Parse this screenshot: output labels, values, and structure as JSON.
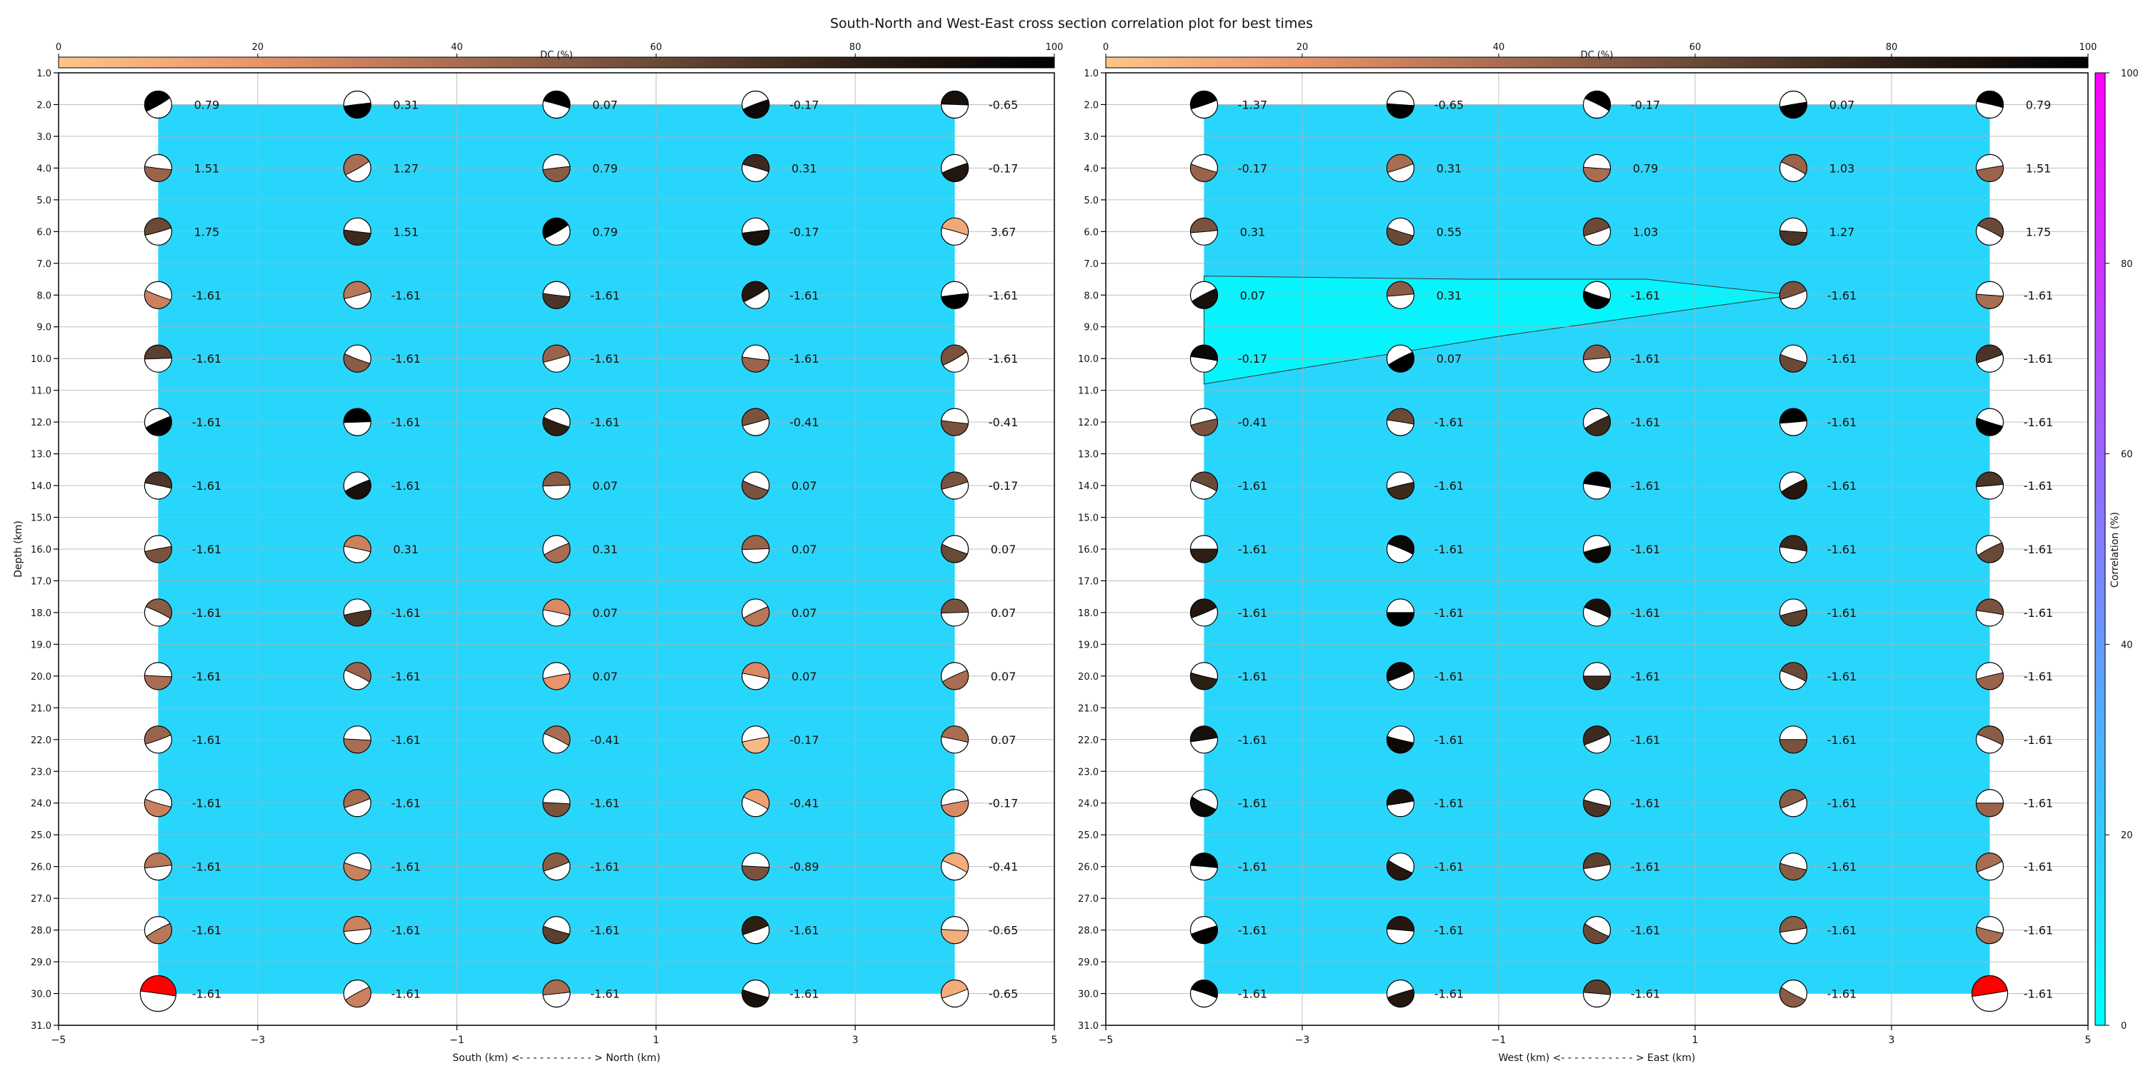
{
  "title": "South-North and West-East cross section correlation plot for best times",
  "colors": {
    "background_fill": "#29d6fb",
    "low_corr_fill": "#08f4fc",
    "beach_white": "#ffffff",
    "highlight": "#ff0000",
    "dc_colormap": [
      "#fdc58a",
      "#e9946a",
      "#a86d52",
      "#6a4a37",
      "#2e1f15",
      "#000000"
    ],
    "corr_colormap": [
      "#00ffff",
      "#ff00ff"
    ]
  },
  "dc_colorbar": {
    "label": "DC (%)",
    "ticks": [
      "0",
      "20",
      "40",
      "60",
      "80",
      "100"
    ]
  },
  "corr_colorbar": {
    "label": "Correlation (%)",
    "ticks": [
      "0",
      "20",
      "40",
      "60",
      "80",
      "100"
    ]
  },
  "chart_data": [
    {
      "type": "scatter",
      "name_label": "",
      "xlabel": "South (km) <- - - - - - - - - - - > North (km)",
      "ylabel": "Depth (km)",
      "xlim": [
        -5,
        5
      ],
      "ylim": [
        31,
        1
      ],
      "xticks": [
        "−5",
        "−3",
        "−1",
        "1",
        "3",
        "5"
      ],
      "yticks": [
        "1.0",
        "2.0",
        "3.0",
        "4.0",
        "5.0",
        "6.0",
        "7.0",
        "8.0",
        "9.0",
        "10.0",
        "11.0",
        "12.0",
        "13.0",
        "14.0",
        "15.0",
        "16.0",
        "17.0",
        "18.0",
        "19.0",
        "20.0",
        "21.0",
        "22.0",
        "23.0",
        "24.0",
        "25.0",
        "26.0",
        "27.0",
        "28.0",
        "29.0",
        "30.0",
        "31.0"
      ],
      "grid": true,
      "columns_x": [
        -4,
        -2,
        0,
        2,
        4
      ],
      "rows_depth": [
        2,
        4,
        6,
        8,
        10,
        12,
        14,
        16,
        18,
        20,
        22,
        24,
        26,
        28,
        30
      ],
      "values": [
        [
          "0.79",
          "0.31",
          "0.07",
          "-0.17",
          "-0.65"
        ],
        [
          "1.51",
          "1.27",
          "0.79",
          "0.31",
          "-0.17"
        ],
        [
          "1.75",
          "1.51",
          "0.79",
          "-0.17",
          "3.67"
        ],
        [
          "-1.61",
          "-1.61",
          "-1.61",
          "-1.61",
          "-1.61"
        ],
        [
          "-1.61",
          "-1.61",
          "-1.61",
          "-1.61",
          "-1.61"
        ],
        [
          "-1.61",
          "-1.61",
          "-1.61",
          "-0.41",
          "-0.41"
        ],
        [
          "-1.61",
          "-1.61",
          "0.07",
          "0.07",
          "-0.17"
        ],
        [
          "-1.61",
          "0.31",
          "0.31",
          "0.07",
          "0.07"
        ],
        [
          "-1.61",
          "-1.61",
          "0.07",
          "0.07",
          "0.07"
        ],
        [
          "-1.61",
          "-1.61",
          "0.07",
          "0.07",
          "0.07"
        ],
        [
          "-1.61",
          "-1.61",
          "-0.41",
          "-0.17",
          "0.07"
        ],
        [
          "-1.61",
          "-1.61",
          "-1.61",
          "-0.41",
          "-0.17"
        ],
        [
          "-1.61",
          "-1.61",
          "-1.61",
          "-0.89",
          "-0.41"
        ],
        [
          "-1.61",
          "-1.61",
          "-1.61",
          "-1.61",
          "-0.65"
        ],
        [
          "-1.61",
          "-1.61",
          "-1.61",
          "-1.61",
          "-0.65"
        ]
      ],
      "dc_percent": [
        [
          100,
          100,
          100,
          95,
          90
        ],
        [
          45,
          40,
          50,
          75,
          85
        ],
        [
          60,
          75,
          100,
          90,
          12
        ],
        [
          30,
          35,
          70,
          85,
          100
        ],
        [
          65,
          50,
          45,
          45,
          55
        ],
        [
          100,
          100,
          80,
          55,
          55
        ],
        [
          70,
          90,
          50,
          55,
          55
        ],
        [
          55,
          30,
          40,
          45,
          60
        ],
        [
          50,
          70,
          25,
          35,
          55
        ],
        [
          40,
          45,
          20,
          25,
          40
        ],
        [
          45,
          40,
          40,
          5,
          40
        ],
        [
          30,
          40,
          55,
          15,
          25
        ],
        [
          35,
          30,
          50,
          55,
          10
        ],
        [
          35,
          30,
          65,
          80,
          10
        ],
        [
          100,
          30,
          40,
          90,
          10
        ]
      ],
      "corr_fill": {
        "x_range": [
          -4,
          4
        ],
        "depth_range": [
          2,
          30
        ]
      },
      "highlight_cell": {
        "row": 14,
        "col": 0
      }
    },
    {
      "type": "scatter",
      "xlabel": "West (km) <- - - - - - - - - - - > East (km)",
      "ylabel": "",
      "xlim": [
        -5,
        5
      ],
      "ylim": [
        31,
        1
      ],
      "xticks": [
        "−5",
        "−3",
        "−1",
        "1",
        "3",
        "5"
      ],
      "yticks": [
        "1.0",
        "2.0",
        "3.0",
        "4.0",
        "5.0",
        "6.0",
        "7.0",
        "8.0",
        "9.0",
        "10.0",
        "11.0",
        "12.0",
        "13.0",
        "14.0",
        "15.0",
        "16.0",
        "17.0",
        "18.0",
        "19.0",
        "20.0",
        "21.0",
        "22.0",
        "23.0",
        "24.0",
        "25.0",
        "26.0",
        "27.0",
        "28.0",
        "29.0",
        "30.0",
        "31.0"
      ],
      "grid": true,
      "columns_x": [
        -4,
        -2,
        0,
        2,
        4
      ],
      "rows_depth": [
        2,
        4,
        6,
        8,
        10,
        12,
        14,
        16,
        18,
        20,
        22,
        24,
        26,
        28,
        30
      ],
      "values": [
        [
          "-1.37",
          "-0.65",
          "-0.17",
          "0.07",
          "0.79"
        ],
        [
          "-0.17",
          "0.31",
          "0.79",
          "1.03",
          "1.51"
        ],
        [
          "0.31",
          "0.55",
          "1.03",
          "1.27",
          "1.75"
        ],
        [
          "0.07",
          "0.31",
          "-1.61",
          "-1.61",
          "-1.61"
        ],
        [
          "-0.17",
          "0.07",
          "-1.61",
          "-1.61",
          "-1.61"
        ],
        [
          "-0.41",
          "-1.61",
          "-1.61",
          "-1.61",
          "-1.61"
        ],
        [
          "-1.61",
          "-1.61",
          "-1.61",
          "-1.61",
          "-1.61"
        ],
        [
          "-1.61",
          "-1.61",
          "-1.61",
          "-1.61",
          "-1.61"
        ],
        [
          "-1.61",
          "-1.61",
          "-1.61",
          "-1.61",
          "-1.61"
        ],
        [
          "-1.61",
          "-1.61",
          "-1.61",
          "-1.61",
          "-1.61"
        ],
        [
          "-1.61",
          "-1.61",
          "-1.61",
          "-1.61",
          "-1.61"
        ],
        [
          "-1.61",
          "-1.61",
          "-1.61",
          "-1.61",
          "-1.61"
        ],
        [
          "-1.61",
          "-1.61",
          "-1.61",
          "-1.61",
          "-1.61"
        ],
        [
          "-1.61",
          "-1.61",
          "-1.61",
          "-1.61",
          "-1.61"
        ],
        [
          "-1.61",
          "-1.61",
          "-1.61",
          "-1.61",
          "-1.61"
        ]
      ],
      "dc_percent": [
        [
          100,
          100,
          100,
          100,
          100
        ],
        [
          45,
          40,
          40,
          45,
          45
        ],
        [
          55,
          60,
          60,
          70,
          60
        ],
        [
          90,
          50,
          100,
          55,
          40
        ],
        [
          95,
          100,
          50,
          60,
          70
        ],
        [
          55,
          60,
          75,
          100,
          100
        ],
        [
          60,
          75,
          100,
          85,
          70
        ],
        [
          80,
          95,
          95,
          75,
          60
        ],
        [
          85,
          100,
          90,
          65,
          55
        ],
        [
          80,
          95,
          75,
          60,
          45
        ],
        [
          90,
          95,
          75,
          55,
          50
        ],
        [
          95,
          90,
          70,
          50,
          45
        ],
        [
          100,
          85,
          65,
          50,
          40
        ],
        [
          100,
          85,
          60,
          50,
          40
        ],
        [
          100,
          85,
          65,
          50,
          100
        ]
      ],
      "corr_fill": {
        "x_range": [
          -4,
          4
        ],
        "depth_range": [
          2,
          30
        ]
      },
      "low_corr_region": [
        [
          -4,
          7.4
        ],
        [
          -1.3,
          7.5
        ],
        [
          0.5,
          7.5
        ],
        [
          2,
          8.0
        ],
        [
          1.3,
          8.3
        ],
        [
          -1,
          9.3
        ],
        [
          -4,
          10.8
        ]
      ],
      "highlight_cell": {
        "row": 14,
        "col": 4
      }
    }
  ]
}
